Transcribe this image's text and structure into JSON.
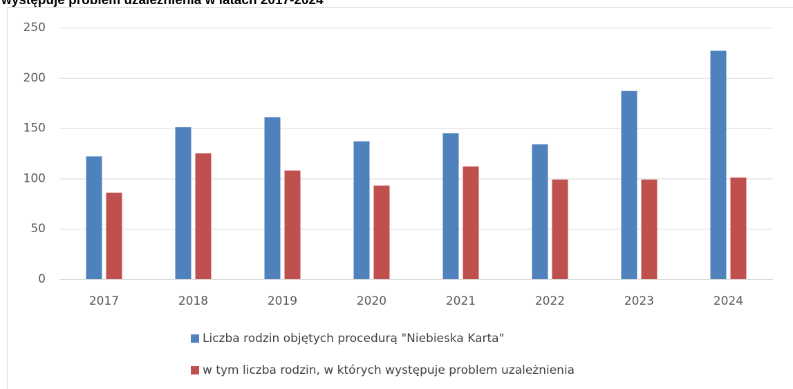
{
  "chart_data": {
    "type": "bar",
    "title": "występuje problem uzależnienia w latach 2017-2024",
    "categories": [
      "2017",
      "2018",
      "2019",
      "2020",
      "2021",
      "2022",
      "2023",
      "2024"
    ],
    "series": [
      {
        "name": "Liczba rodzin objętych procedurą \"Niebieska Karta\"",
        "color": "#4f81bd",
        "values": [
          122,
          151,
          161,
          137,
          145,
          134,
          187,
          227
        ]
      },
      {
        "name": "w tym liczba rodzin, w których występuje problem uzależnienia",
        "color": "#c0504d",
        "values": [
          86,
          125,
          108,
          93,
          112,
          99,
          99,
          101
        ]
      }
    ],
    "ylim": [
      0,
      250
    ],
    "yticks": [
      0,
      50,
      100,
      150,
      200,
      250
    ],
    "grid": true,
    "legend": "bottom"
  }
}
